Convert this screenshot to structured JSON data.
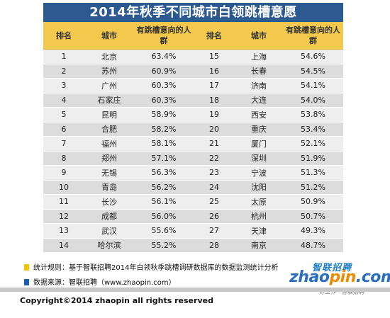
{
  "title": "2014年秋季不同城市白领跳槽意愿",
  "columns": [
    "排名",
    "城市",
    "有跳槽意向的人群",
    "排名",
    "城市",
    "有跳槽意向的人群"
  ],
  "rows": [
    {
      "rank_a": "1",
      "city_a": "北京",
      "pct_a": "63.4%",
      "rank_b": "15",
      "city_b": "上海",
      "pct_b": "54.6%"
    },
    {
      "rank_a": "2",
      "city_a": "苏州",
      "pct_a": "60.9%",
      "rank_b": "16",
      "city_b": "长春",
      "pct_b": "54.5%"
    },
    {
      "rank_a": "3",
      "city_a": "广州",
      "pct_a": "60.3%",
      "rank_b": "17",
      "city_b": "济南",
      "pct_b": "54.1%"
    },
    {
      "rank_a": "4",
      "city_a": "石家庄",
      "pct_a": "60.3%",
      "rank_b": "18",
      "city_b": "大连",
      "pct_b": "54.0%"
    },
    {
      "rank_a": "5",
      "city_a": "昆明",
      "pct_a": "58.9%",
      "rank_b": "19",
      "city_b": "西安",
      "pct_b": "53.8%"
    },
    {
      "rank_a": "6",
      "city_a": "合肥",
      "pct_a": "58.2%",
      "rank_b": "20",
      "city_b": "重庆",
      "pct_b": "53.4%"
    },
    {
      "rank_a": "7",
      "city_a": "福州",
      "pct_a": "58.1%",
      "rank_b": "21",
      "city_b": "厦门",
      "pct_b": "52.1%"
    },
    {
      "rank_a": "8",
      "city_a": "郑州",
      "pct_a": "57.1%",
      "rank_b": "22",
      "city_b": "深圳",
      "pct_b": "51.9%"
    },
    {
      "rank_a": "9",
      "city_a": "无锡",
      "pct_a": "56.3%",
      "rank_b": "23",
      "city_b": "宁波",
      "pct_b": "51.3%"
    },
    {
      "rank_a": "10",
      "city_a": "青岛",
      "pct_a": "56.2%",
      "rank_b": "24",
      "city_b": "沈阳",
      "pct_b": "51.2%"
    },
    {
      "rank_a": "11",
      "city_a": "长沙",
      "pct_a": "56.1%",
      "rank_b": "25",
      "city_b": "太原",
      "pct_b": "50.9%"
    },
    {
      "rank_a": "12",
      "city_a": "成都",
      "pct_a": "56.0%",
      "rank_b": "26",
      "city_b": "杭州",
      "pct_b": "50.7%"
    },
    {
      "rank_a": "13",
      "city_a": "武汉",
      "pct_a": "55.6%",
      "rank_b": "27",
      "city_b": "天津",
      "pct_b": "49.3%"
    },
    {
      "rank_a": "14",
      "city_a": "哈尔滨",
      "pct_a": "55.2%",
      "rank_b": "28",
      "city_b": "南京",
      "pct_b": "48.7%"
    }
  ],
  "notes": {
    "rule": "统计规则：基于智联招聘2014年白领秋季跳槽调研数据库的数据监测统计分析",
    "source": "数据来源：智联招聘（www.zhaopin.com）"
  },
  "logo": {
    "brand": "智联招聘",
    "site_main": "zhao",
    "site_highlight": "pin",
    "site_tail": ".com",
    "slogan": "好工作 · 智联招聘"
  },
  "copyright": "Copyright©2014 zhaopin all rights reserved",
  "colors": {
    "title_bg": "#2c5a90",
    "header_bg": "#f2c94c",
    "row_light": "#eeeeee",
    "row_dark": "#dcdcdc",
    "note_rule_marker": "#f2c100",
    "note_source_marker": "#1f5ea8"
  }
}
